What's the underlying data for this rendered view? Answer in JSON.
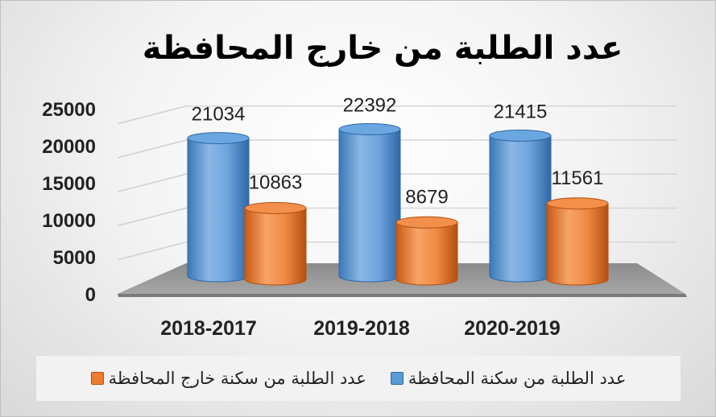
{
  "chart_data": {
    "type": "bar",
    "title": "عدد الطلبة من خارج المحافظة",
    "categories": [
      "2018-2017",
      "2019-2018",
      "2020-2019"
    ],
    "series": [
      {
        "name": "عدد الطلبة من سكنة المحافظة",
        "values": [
          21034,
          22392,
          21415
        ],
        "color": "#5b9bd5"
      },
      {
        "name": "عدد الطلبة من سكنة خارج المحافظة",
        "values": [
          10863,
          8679,
          11561
        ],
        "color": "#ed7d31"
      }
    ],
    "ylim": [
      0,
      25000
    ],
    "yticks": [
      "0",
      "5000",
      "10000",
      "15000",
      "20000",
      "25000"
    ],
    "grid": true,
    "legend_position": "bottom",
    "style": "3d-cylinder"
  }
}
